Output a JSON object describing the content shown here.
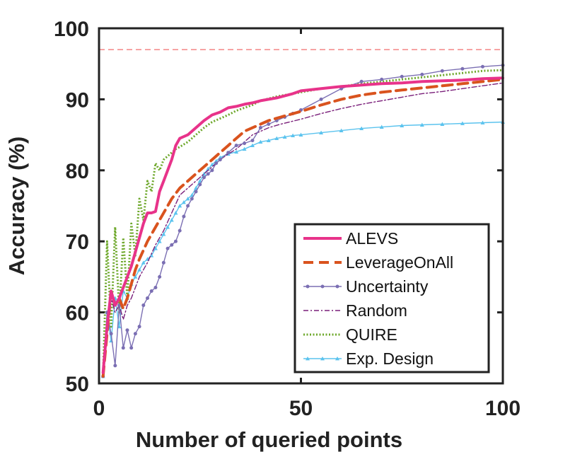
{
  "chart_data": {
    "type": "line",
    "title": "",
    "xlabel": "Number of queried points",
    "ylabel": "Accuracy (%)",
    "xlim": [
      0,
      100
    ],
    "ylim": [
      50,
      100
    ],
    "xticks": [
      0,
      50,
      100
    ],
    "yticks": [
      50,
      60,
      70,
      80,
      90,
      100
    ],
    "grid": false,
    "legend_position": "bottom-right",
    "reference_line": {
      "y": 97,
      "color": "#f26d6d",
      "style": "dashed"
    },
    "series": [
      {
        "name": "ALEVS",
        "color": "#e8338a",
        "style": "solid-thick",
        "marker": "none",
        "x": [
          1,
          2,
          3,
          4,
          5,
          6,
          7,
          8,
          9,
          10,
          11,
          12,
          13,
          14,
          15,
          16,
          17,
          18,
          19,
          20,
          22,
          24,
          26,
          28,
          30,
          32,
          34,
          36,
          38,
          40,
          42,
          44,
          46,
          48,
          50,
          55,
          60,
          65,
          70,
          75,
          80,
          85,
          90,
          95,
          100
        ],
        "y": [
          51.5,
          58,
          63,
          61,
          62,
          63.5,
          65,
          66.5,
          68.5,
          70.5,
          72.5,
          74,
          74,
          74.2,
          77,
          78.5,
          80,
          81.5,
          83.5,
          84.5,
          85,
          86,
          87,
          87.8,
          88.2,
          88.8,
          89,
          89.3,
          89.5,
          89.8,
          90,
          90.2,
          90.5,
          90.8,
          91.2,
          91.5,
          91.8,
          92,
          92.2,
          92.3,
          92.5,
          92.6,
          92.7,
          92.9,
          93
        ]
      },
      {
        "name": "LeverageOnAll",
        "color": "#d9531e",
        "style": "dashed-thick",
        "marker": "none",
        "x": [
          1,
          2,
          3,
          4,
          5,
          6,
          7,
          8,
          9,
          10,
          12,
          14,
          16,
          18,
          20,
          22,
          24,
          26,
          28,
          30,
          32,
          34,
          36,
          38,
          40,
          42,
          45,
          50,
          55,
          60,
          65,
          70,
          75,
          80,
          85,
          90,
          95,
          100
        ],
        "y": [
          51,
          57,
          63,
          61,
          62,
          60.5,
          62,
          64,
          66,
          67.5,
          70,
          72,
          74,
          76,
          77.5,
          78.5,
          79.5,
          80.5,
          81.5,
          82.5,
          83.5,
          84.5,
          85.5,
          86,
          86.5,
          87,
          87.5,
          88.3,
          89.2,
          90,
          90.6,
          91,
          91.3,
          91.6,
          91.9,
          92.2,
          92.5,
          92.8
        ]
      },
      {
        "name": "Uncertainty",
        "color": "#7b6fb3",
        "style": "solid-thin",
        "marker": "dot",
        "x": [
          1,
          2,
          3,
          4,
          5,
          6,
          7,
          8,
          9,
          10,
          11,
          12,
          13,
          14,
          15,
          16,
          17,
          18,
          19,
          20,
          21,
          22,
          23,
          24,
          25,
          26,
          27,
          28,
          29,
          30,
          32,
          34,
          36,
          38,
          40,
          42,
          44,
          46,
          48,
          50,
          55,
          60,
          65,
          70,
          75,
          80,
          85,
          90,
          95,
          100
        ],
        "y": [
          51,
          60,
          57,
          52.5,
          61,
          55,
          57.5,
          55,
          57,
          58,
          61,
          62,
          63,
          63.5,
          65,
          67,
          69,
          69.5,
          70,
          71.5,
          73.5,
          75,
          76,
          77,
          78,
          79,
          79.5,
          80,
          81,
          81.5,
          82.5,
          83.5,
          83.8,
          84.2,
          86,
          86.5,
          87,
          87.5,
          88,
          88.5,
          90,
          91.5,
          92.5,
          92.8,
          93.2,
          93.5,
          94,
          94.3,
          94.6,
          94.8
        ]
      },
      {
        "name": "Random",
        "color": "#7a1f7a",
        "style": "dashdot",
        "marker": "none",
        "x": [
          1,
          2,
          3,
          4,
          5,
          6,
          7,
          8,
          9,
          10,
          12,
          14,
          16,
          18,
          20,
          22,
          24,
          26,
          28,
          30,
          32,
          34,
          36,
          38,
          40,
          42,
          45,
          50,
          55,
          60,
          65,
          70,
          75,
          80,
          85,
          90,
          95,
          100
        ],
        "y": [
          51,
          58,
          62,
          60,
          61,
          59,
          61,
          62,
          63.5,
          65,
          67,
          69.5,
          71.5,
          74,
          76.5,
          77.5,
          78.5,
          79.5,
          80.5,
          81.5,
          82.3,
          83,
          84,
          85,
          85.5,
          86,
          86.5,
          87.2,
          88,
          88.7,
          89.3,
          89.8,
          90.3,
          90.8,
          91.1,
          91.5,
          91.9,
          92.3
        ]
      },
      {
        "name": "QUIRE",
        "color": "#6ea82b",
        "style": "dotted",
        "marker": "none",
        "x": [
          1,
          2,
          3,
          4,
          5,
          6,
          7,
          8,
          9,
          10,
          11,
          12,
          13,
          14,
          15,
          16,
          17,
          18,
          19,
          20,
          22,
          24,
          26,
          28,
          30,
          32,
          34,
          36,
          38,
          40,
          42,
          44,
          46,
          48,
          50,
          55,
          60,
          65,
          70,
          75,
          80,
          85,
          90,
          95,
          100
        ],
        "y": [
          51,
          70,
          58,
          72,
          60,
          70.5,
          62,
          72.5,
          68,
          76,
          73,
          78.5,
          77,
          81,
          80,
          81.5,
          82,
          82.5,
          83,
          83.3,
          84,
          85,
          86,
          86.8,
          87.3,
          87.8,
          88.4,
          88.8,
          89.2,
          89.8,
          90.1,
          90.4,
          90.6,
          90.8,
          91,
          91.5,
          91.8,
          92.2,
          92.5,
          92.8,
          93.1,
          93.4,
          93.7,
          94,
          94.1
        ]
      },
      {
        "name": "Exp. Design",
        "color": "#5bc3ee",
        "style": "solid-thin",
        "marker": "triangle",
        "x": [
          1,
          2,
          3,
          4,
          5,
          6,
          7,
          8,
          9,
          10,
          11,
          12,
          13,
          14,
          15,
          16,
          17,
          18,
          19,
          20,
          21,
          22,
          23,
          24,
          25,
          26,
          27,
          28,
          29,
          30,
          32,
          34,
          36,
          38,
          40,
          42,
          44,
          46,
          48,
          50,
          55,
          60,
          65,
          70,
          75,
          80,
          85,
          90,
          95,
          100
        ],
        "y": [
          51,
          60,
          56,
          62,
          58,
          63,
          62,
          64,
          65,
          66,
          67,
          67.5,
          68,
          69,
          70,
          71,
          72,
          73,
          74,
          75,
          75.5,
          76,
          76.5,
          77.5,
          78.5,
          79.5,
          80.2,
          80.8,
          81.3,
          81.8,
          82.3,
          82.6,
          83,
          83.5,
          84,
          84.2,
          84.5,
          84.7,
          84.9,
          85,
          85.3,
          85.6,
          85.9,
          86.1,
          86.3,
          86.4,
          86.5,
          86.6,
          86.7,
          86.8
        ]
      }
    ]
  }
}
